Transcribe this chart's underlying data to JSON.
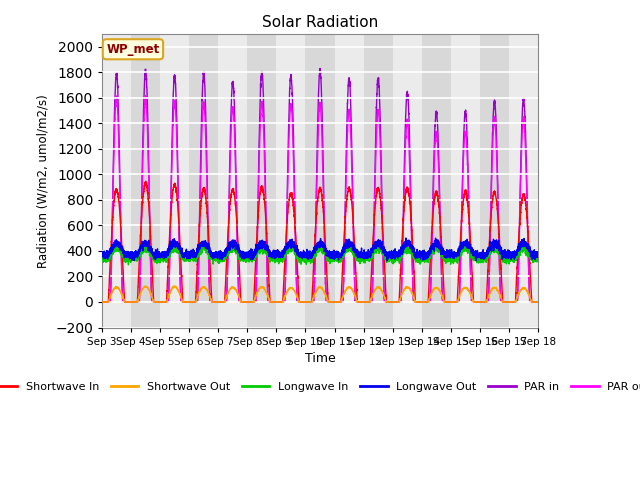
{
  "title": "Solar Radiation",
  "xlabel": "Time",
  "ylabel": "Radiation (W/m2, umol/m2/s)",
  "ylim": [
    -200,
    2100
  ],
  "yticks": [
    -200,
    0,
    200,
    400,
    600,
    800,
    1000,
    1200,
    1400,
    1600,
    1800,
    2000
  ],
  "num_days": 15,
  "colors": {
    "shortwave_in": "#FF0000",
    "shortwave_out": "#FFA500",
    "longwave_in": "#00CC00",
    "longwave_out": "#0000EE",
    "par_in": "#9900CC",
    "par_out": "#FF00FF"
  },
  "legend_label": "WP_met",
  "background_color": "#EBEBEB",
  "grid_color": "#FFFFFF",
  "line_width": 1.0,
  "day_peaks_sw_in": [
    880,
    930,
    920,
    890,
    880,
    900,
    850,
    890,
    890,
    890,
    890,
    860,
    860,
    860,
    840
  ],
  "day_peaks_par_in": [
    1790,
    1810,
    1770,
    1790,
    1720,
    1800,
    1770,
    1810,
    1750,
    1750,
    1640,
    1490,
    1490,
    1570,
    1590
  ],
  "day_peaks_par_out": [
    1600,
    1600,
    1570,
    1560,
    1520,
    1560,
    1540,
    1560,
    1500,
    1500,
    1420,
    1330,
    1340,
    1430,
    1430
  ]
}
